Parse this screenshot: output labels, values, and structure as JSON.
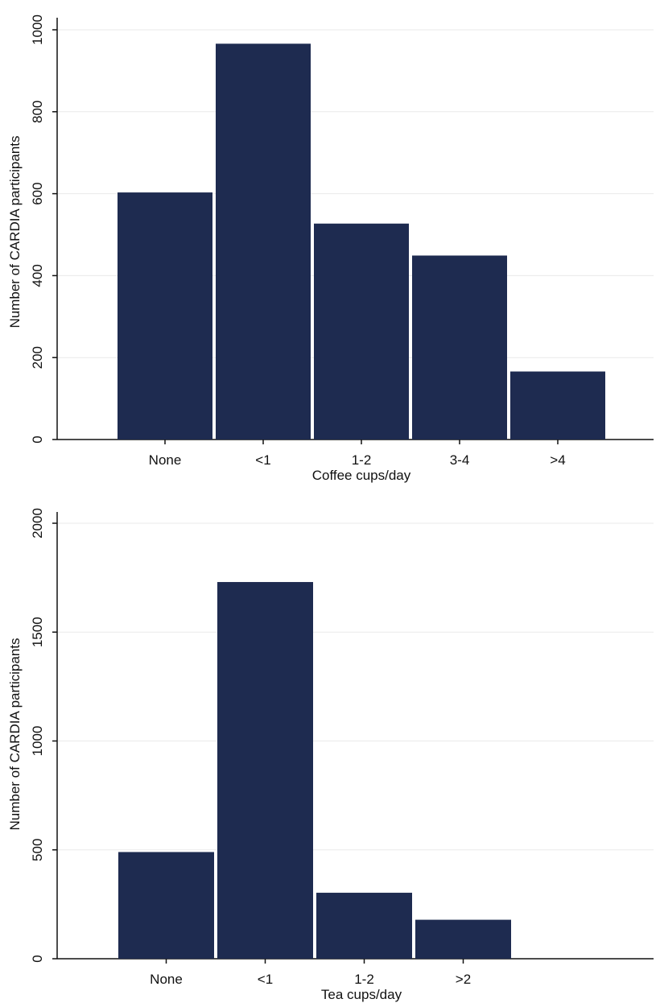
{
  "colors": {
    "bar": "#1e2b50",
    "grid": "#eaeaea",
    "axis": "#111111"
  },
  "chart_data": [
    {
      "type": "bar",
      "title": "",
      "xlabel": "Coffee cups/day",
      "ylabel": "Number of CARDIA participants",
      "categories": [
        "None",
        "<1",
        "1-2",
        "3-4",
        ">4"
      ],
      "values": [
        603,
        966,
        527,
        449,
        166
      ],
      "ylim": [
        0,
        1000
      ],
      "yticks": [
        0,
        200,
        400,
        600,
        800,
        1000
      ],
      "ytick_labels": [
        "0",
        "200",
        "400",
        "600",
        "800",
        "1000"
      ],
      "grid": true
    },
    {
      "type": "bar",
      "title": "",
      "xlabel": "Tea cups/day",
      "ylabel": "Number of CARDIA participants",
      "categories": [
        "None",
        "<1",
        "1-2",
        ">2"
      ],
      "values": [
        490,
        1730,
        303,
        179
      ],
      "ylim": [
        0,
        2000
      ],
      "yticks": [
        0,
        500,
        1000,
        1500,
        2000
      ],
      "ytick_labels": [
        "0",
        "500",
        "1000",
        "1500",
        "2000"
      ],
      "grid": true
    }
  ]
}
